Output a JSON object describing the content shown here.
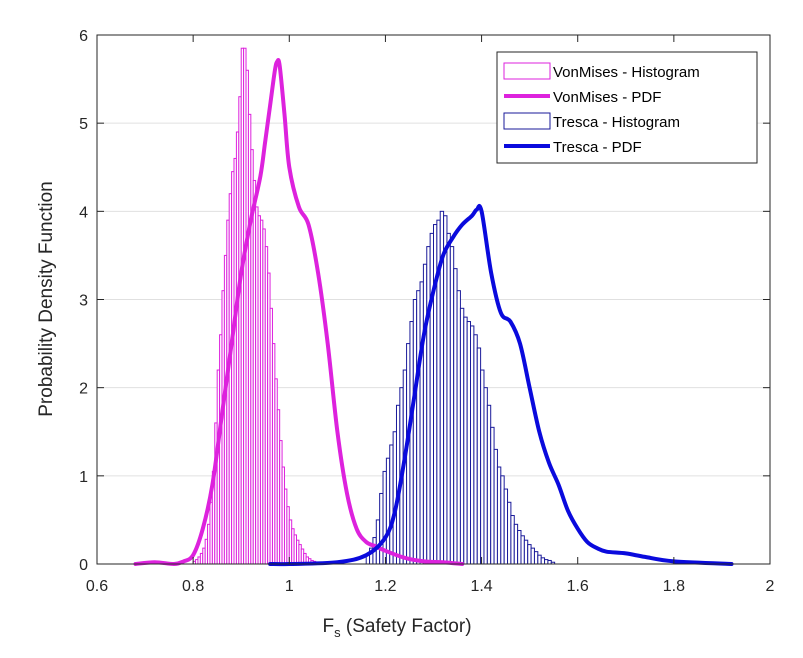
{
  "chart_data": {
    "type": "bar",
    "xlabel_main": "F",
    "xlabel_sub": "s",
    "xlabel_rest": " (Safety Factor)",
    "ylabel": "Probability Density Function",
    "xlim": [
      0.6,
      2
    ],
    "ylim": [
      0,
      6
    ],
    "xticks": [
      "0.6",
      "0.8",
      "1",
      "1.2",
      "1.4",
      "1.6",
      "1.8",
      "2"
    ],
    "yticks": [
      "0",
      "1",
      "2",
      "3",
      "4",
      "5",
      "6"
    ],
    "grid": "horizontal",
    "legend_position": "top-right",
    "colors": {
      "vonmises": "#DD22DD",
      "tresca": "#0A0ADD",
      "tresca_hist_edge": "#1A1A9A",
      "grid": "#E0E0E0",
      "axis": "#262626"
    },
    "legend": [
      {
        "label": "VonMises - Histogram",
        "kind": "rect",
        "series": "vonmises"
      },
      {
        "label": "VonMises - PDF",
        "kind": "line",
        "series": "vonmises"
      },
      {
        "label": "Tresca - Histogram",
        "kind": "rect",
        "series": "tresca"
      },
      {
        "label": "Tresca - PDF",
        "kind": "line",
        "series": "tresca"
      }
    ],
    "series": [
      {
        "name": "VonMises - Histogram",
        "kind": "histogram",
        "color_key": "vonmises",
        "bin_start": 0.8,
        "bin_width": 0.005,
        "values": [
          0.03,
          0.05,
          0.08,
          0.12,
          0.18,
          0.28,
          0.45,
          0.7,
          1.05,
          1.6,
          2.2,
          2.6,
          3.1,
          3.5,
          3.9,
          4.2,
          4.45,
          4.6,
          4.9,
          5.3,
          5.85,
          5.85,
          5.6,
          5.1,
          4.7,
          4.35,
          4.05,
          3.95,
          3.9,
          3.8,
          3.6,
          3.3,
          2.9,
          2.5,
          2.1,
          1.75,
          1.4,
          1.1,
          0.85,
          0.65,
          0.5,
          0.4,
          0.33,
          0.27,
          0.22,
          0.17,
          0.12,
          0.08,
          0.06,
          0.04,
          0.03
        ]
      },
      {
        "name": "VonMises - PDF",
        "kind": "line",
        "color_key": "vonmises",
        "x": [
          0.68,
          0.72,
          0.76,
          0.78,
          0.8,
          0.82,
          0.84,
          0.86,
          0.88,
          0.9,
          0.92,
          0.94,
          0.95,
          0.96,
          0.97,
          0.975,
          0.98,
          0.99,
          1.0,
          1.02,
          1.04,
          1.06,
          1.08,
          1.1,
          1.12,
          1.14,
          1.16,
          1.18,
          1.2,
          1.24,
          1.28,
          1.32,
          1.36
        ],
        "y": [
          0.0,
          0.02,
          0.0,
          0.03,
          0.1,
          0.4,
          0.9,
          1.7,
          2.5,
          3.3,
          3.9,
          4.4,
          4.8,
          5.2,
          5.6,
          5.7,
          5.65,
          5.1,
          4.5,
          4.05,
          3.85,
          3.3,
          2.5,
          1.5,
          0.8,
          0.4,
          0.25,
          0.2,
          0.15,
          0.07,
          0.03,
          0.02,
          0.0
        ]
      },
      {
        "name": "Tresca - Histogram",
        "kind": "histogram",
        "color_key": "tresca",
        "bin_start": 1.16,
        "bin_width": 0.007,
        "values": [
          0.1,
          0.18,
          0.3,
          0.5,
          0.8,
          1.05,
          1.2,
          1.35,
          1.5,
          1.8,
          2.0,
          2.2,
          2.5,
          2.75,
          3.0,
          3.1,
          3.2,
          3.4,
          3.6,
          3.75,
          3.85,
          3.9,
          4.0,
          3.95,
          3.75,
          3.6,
          3.35,
          3.1,
          2.9,
          2.8,
          2.75,
          2.7,
          2.6,
          2.45,
          2.2,
          2.0,
          1.8,
          1.55,
          1.3,
          1.1,
          1.0,
          0.85,
          0.7,
          0.55,
          0.45,
          0.38,
          0.32,
          0.27,
          0.22,
          0.18,
          0.14,
          0.1,
          0.07,
          0.05,
          0.04,
          0.02
        ]
      },
      {
        "name": "Tresca - PDF",
        "kind": "line",
        "color_key": "tresca",
        "x": [
          0.96,
          1.0,
          1.1,
          1.16,
          1.2,
          1.22,
          1.24,
          1.26,
          1.28,
          1.3,
          1.32,
          1.34,
          1.36,
          1.38,
          1.39,
          1.4,
          1.42,
          1.44,
          1.46,
          1.48,
          1.5,
          1.52,
          1.54,
          1.56,
          1.58,
          1.6,
          1.62,
          1.64,
          1.66,
          1.7,
          1.74,
          1.8,
          1.92
        ],
        "y": [
          0.0,
          0.0,
          0.02,
          0.1,
          0.3,
          0.6,
          1.2,
          1.9,
          2.6,
          3.1,
          3.5,
          3.7,
          3.85,
          3.95,
          4.02,
          4.0,
          3.3,
          2.85,
          2.75,
          2.5,
          2.0,
          1.5,
          1.15,
          0.9,
          0.6,
          0.4,
          0.25,
          0.18,
          0.14,
          0.12,
          0.08,
          0.03,
          0.0
        ]
      }
    ]
  }
}
